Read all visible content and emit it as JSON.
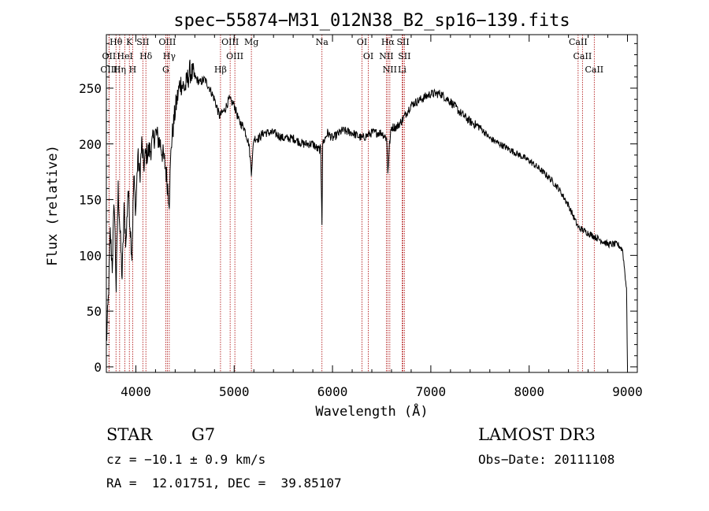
{
  "chart_data": {
    "type": "line",
    "title": "spec−55874−M31_012N38_B2_sp16−139.fits",
    "xlabel": "Wavelength (Å)",
    "ylabel": "Flux (relative)",
    "xlim": [
      3700,
      9100
    ],
    "ylim": [
      -5,
      298
    ],
    "xticks": [
      4000,
      5000,
      6000,
      7000,
      8000,
      9000
    ],
    "xtick_labels": [
      "4000",
      "5000",
      "6000",
      "7000",
      "8000",
      "9000"
    ],
    "yticks": [
      0,
      50,
      100,
      150,
      200,
      250
    ],
    "ytick_labels": [
      "0",
      "50",
      "100",
      "150",
      "200",
      "250"
    ],
    "grid": false,
    "line_color": "#000000",
    "marker_color": "#aa0000",
    "spectrum": {
      "x": [
        3700,
        3720,
        3740,
        3760,
        3780,
        3800,
        3820,
        3840,
        3860,
        3880,
        3900,
        3920,
        3940,
        3960,
        3980,
        4000,
        4020,
        4040,
        4060,
        4080,
        4100,
        4150,
        4200,
        4250,
        4300,
        4340,
        4360,
        4400,
        4450,
        4500,
        4550,
        4600,
        4650,
        4700,
        4750,
        4800,
        4850,
        4900,
        4950,
        5000,
        5050,
        5100,
        5150,
        5175,
        5200,
        5250,
        5300,
        5400,
        5500,
        5600,
        5700,
        5800,
        5850,
        5880,
        5893,
        5900,
        5950,
        6000,
        6100,
        6200,
        6300,
        6400,
        6500,
        6550,
        6563,
        6580,
        6600,
        6650,
        6700,
        6800,
        6900,
        7000,
        7100,
        7200,
        7300,
        7400,
        7500,
        7600,
        7700,
        7800,
        7900,
        8000,
        8100,
        8200,
        8300,
        8400,
        8500,
        8600,
        8700,
        8800,
        8900,
        8950,
        8990,
        9000
      ],
      "y": [
        20,
        60,
        120,
        90,
        150,
        70,
        160,
        120,
        80,
        140,
        110,
        160,
        130,
        100,
        170,
        140,
        190,
        170,
        200,
        180,
        190,
        195,
        210,
        200,
        180,
        150,
        200,
        230,
        255,
        250,
        265,
        260,
        255,
        258,
        250,
        240,
        225,
        230,
        240,
        235,
        220,
        215,
        200,
        175,
        205,
        205,
        210,
        210,
        205,
        205,
        200,
        200,
        195,
        195,
        130,
        200,
        210,
        205,
        212,
        210,
        205,
        210,
        210,
        205,
        175,
        200,
        215,
        215,
        220,
        235,
        240,
        245,
        245,
        238,
        228,
        220,
        215,
        205,
        200,
        195,
        190,
        185,
        178,
        170,
        160,
        145,
        125,
        120,
        115,
        110,
        110,
        105,
        70,
        0
      ]
    },
    "lines": [
      {
        "label": "Hθ",
        "x": 3798
      },
      {
        "label": "OII",
        "x": 3727
      },
      {
        "label": "OIII",
        "x": 3727
      },
      {
        "label": "Hη",
        "x": 3835
      },
      {
        "label": "HeI",
        "x": 3889
      },
      {
        "label": "K",
        "x": 3934
      },
      {
        "label": "H",
        "x": 3968
      },
      {
        "label": "SII",
        "x": 4071
      },
      {
        "label": "Hδ",
        "x": 4102
      },
      {
        "label": "OIII",
        "x": 4320
      },
      {
        "label": "Hγ",
        "x": 4340
      },
      {
        "label": "G",
        "x": 4304
      },
      {
        "label": "OIII",
        "x": 4959
      },
      {
        "label": "OIII",
        "x": 5007
      },
      {
        "label": "Hβ",
        "x": 4861
      },
      {
        "label": "Mg",
        "x": 5175
      },
      {
        "label": "Na",
        "x": 5893
      },
      {
        "label": "OI",
        "x": 6300
      },
      {
        "label": "OI",
        "x": 6364
      },
      {
        "label": "Hα",
        "x": 6563
      },
      {
        "label": "NII",
        "x": 6548
      },
      {
        "label": "NII",
        "x": 6583
      },
      {
        "label": "SII",
        "x": 6717
      },
      {
        "label": "SII",
        "x": 6731
      },
      {
        "label": "Li",
        "x": 6708
      },
      {
        "label": "CaII",
        "x": 8498
      },
      {
        "label": "CaII",
        "x": 8542
      },
      {
        "label": "CaII",
        "x": 8662
      }
    ]
  },
  "footer": {
    "class_label": "STAR",
    "subclass": "G7",
    "survey": "LAMOST DR3",
    "cz_text": "cz = −10.1 ± 0.9 km/s",
    "obs_date": "Obs−Date: 20111108",
    "radec_text": "RA =  12.01751, DEC =  39.85107"
  }
}
